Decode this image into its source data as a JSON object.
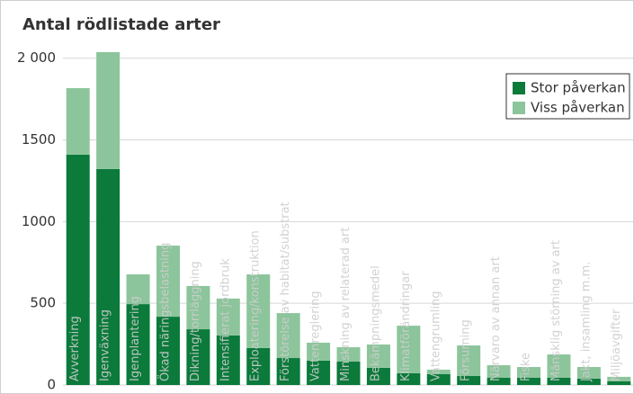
{
  "chart_data": {
    "type": "stacked_bar",
    "title": "Antal rödlistade arter",
    "categories": [
      "Avverkning",
      "Igenväxning",
      "Igenplantering",
      "Ökad näringsbelastning",
      "Dikning/torrläggning",
      "Intensifierat jordbruk",
      "Exploatering/konstruktion",
      "Förstörelse av habitat/substrat",
      "Vattenreglering",
      "Minskning av relaterad art",
      "Bekämpningsmedel",
      "Klimatförändringar",
      "Vattengrumling",
      "Försurning",
      "Närvaro av annan art",
      "Fiske",
      "Mänsklig störning av art",
      "Jakt, insamling m.m.",
      "Miljöavgifter"
    ],
    "series": [
      {
        "name": "Stor påverkan",
        "color": "#0b7a3b",
        "values": [
          1410,
          1322,
          495,
          418,
          341,
          303,
          226,
          165,
          149,
          143,
          105,
          72,
          66,
          55,
          44,
          44,
          44,
          39,
          22
        ]
      },
      {
        "name": "Viss påverkan",
        "color": "#8cc59b",
        "values": [
          407,
          715,
          182,
          435,
          265,
          226,
          451,
          275,
          110,
          88,
          143,
          291,
          28,
          187,
          77,
          66,
          143,
          71,
          28
        ]
      }
    ],
    "ylim": [
      0,
      2070
    ],
    "yticks": [
      0,
      500,
      1000,
      1500,
      {
        "value": 2000,
        "label": "2 000"
      }
    ],
    "grid": true,
    "legend": "top-right"
  }
}
